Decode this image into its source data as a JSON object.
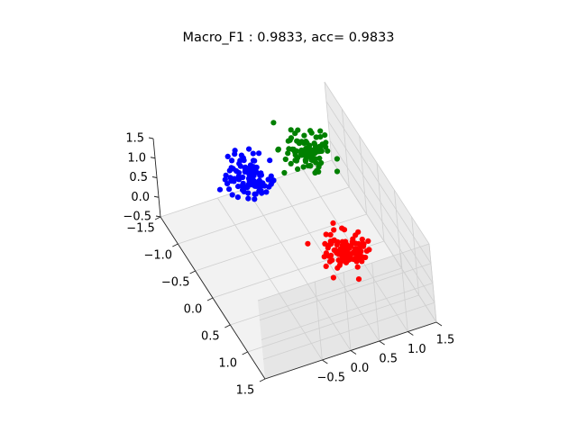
{
  "chart_data": {
    "type": "scatter",
    "title": "Macro_F1 : 0.9833, acc= 0.9833",
    "projection": "3d",
    "grid": true,
    "xlim": [
      -1.5,
      1.5
    ],
    "ylim": [
      -1.5,
      1.5
    ],
    "zlim": [
      -0.5,
      1.5
    ],
    "x_ticks": [
      "−1.5",
      "−1.0",
      "−0.5",
      "0.0",
      "0.5",
      "1.0",
      "1.5"
    ],
    "y_ticks": [
      "−0.5",
      "0.0",
      "0.5",
      "1.0",
      "1.5"
    ],
    "z_ticks": [
      "−0.5",
      "0.0",
      "0.5",
      "1.0",
      "1.5"
    ],
    "series": [
      {
        "color": "#0000ff",
        "center": [
          -1.0,
          -0.2,
          0.6
        ],
        "spread": [
          0.18,
          0.18,
          0.15
        ],
        "count": 100
      },
      {
        "color": "#008000",
        "center": [
          -0.8,
          0.75,
          1.0
        ],
        "spread": [
          0.15,
          0.18,
          0.15
        ],
        "count": 100
      },
      {
        "color": "#ff0000",
        "center": [
          0.65,
          0.5,
          0.7
        ],
        "spread": [
          0.15,
          0.18,
          0.15
        ],
        "count": 100
      }
    ]
  }
}
